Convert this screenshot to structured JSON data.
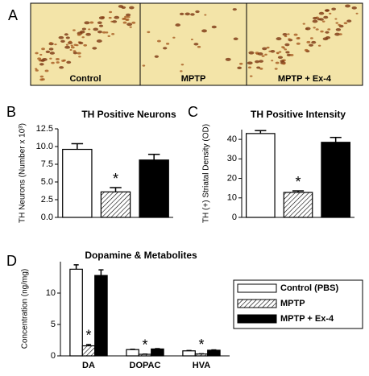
{
  "panel_a": {
    "letter": "A",
    "labels": [
      "Control",
      "MPTP",
      "MPTP + Ex-4"
    ]
  },
  "chart_data": [
    {
      "type": "bar",
      "panel": "B",
      "title": "TH Positive Neurons",
      "y_label": "TH Neurons (Number x 10³)",
      "values": [
        9.6,
        3.6,
        8.1
      ],
      "errors": [
        0.8,
        0.6,
        0.8
      ],
      "bar_styles": [
        "open",
        "hatched",
        "filled"
      ],
      "ylim": [
        0,
        12.5
      ],
      "yticks": [
        {
          "value": 0,
          "label": "0.0"
        },
        2.5,
        {
          "value": 5,
          "label": "5.0"
        },
        7.5,
        {
          "value": 10,
          "label": "10.0"
        },
        12.5
      ],
      "annotations": [
        {
          "text": "*",
          "index": 1
        }
      ]
    },
    {
      "type": "bar",
      "panel": "C",
      "title": "TH Positive Intensity",
      "y_label": "TH (+) Striatal Density (OD)",
      "values": [
        43,
        12.8,
        38.5
      ],
      "errors": [
        1.5,
        0.8,
        2.5
      ],
      "bar_styles": [
        "open",
        "hatched",
        "filled"
      ],
      "ylim": [
        0,
        45
      ],
      "yticks": [
        0,
        10,
        20,
        30,
        40
      ],
      "annotations": [
        {
          "text": "*",
          "index": 1
        }
      ]
    },
    {
      "type": "grouped_bar",
      "panel": "D",
      "title": "Dopamine & Metabolites",
      "y_label": "Concentration (ng/mg)",
      "categories": [
        "DA",
        "DOPAC",
        "HVA"
      ],
      "series": [
        {
          "name": "Control (PBS)",
          "style": "open",
          "values": [
            13.8,
            1.0,
            0.8
          ],
          "errors": [
            0.7,
            0.05,
            0.05
          ]
        },
        {
          "name": "MPTP",
          "style": "hatched",
          "values": [
            1.6,
            0.25,
            0.3
          ],
          "errors": [
            0.2,
            0.03,
            0.03
          ]
        },
        {
          "name": "MPTP + Ex-4",
          "style": "filled",
          "values": [
            12.8,
            1.1,
            0.9
          ],
          "errors": [
            0.9,
            0.05,
            0.05
          ]
        }
      ],
      "ylim": [
        0,
        15
      ],
      "yticks": [
        0,
        5,
        10
      ],
      "legend": "right",
      "annotations": [
        {
          "text": "*",
          "series": 1,
          "index": 0
        },
        {
          "text": "*",
          "series": 1,
          "index": 1
        },
        {
          "text": "*",
          "series": 1,
          "index": 2
        }
      ]
    }
  ]
}
